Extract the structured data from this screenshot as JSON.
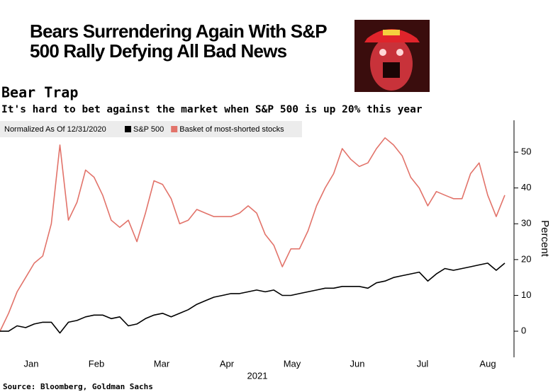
{
  "headline_lines": [
    "Bears Surrendering Again With S&P",
    "500 Rally Defying All Bad News"
  ],
  "chart_data": {
    "type": "line",
    "title": "Bear Trap",
    "subtitle": "It's hard to bet against the market when S&P 500 is up 20% this year",
    "legend_title": "Normalized As Of 12/31/2020",
    "x_labels": [
      "Jan",
      "Feb",
      "Mar",
      "Apr",
      "May",
      "Jun",
      "Jul",
      "Aug"
    ],
    "x_label": "2021",
    "y_label": "Percent",
    "source": "Source: Bloomberg, Goldman Sachs",
    "ylim": [
      -7.3,
      58.9
    ],
    "yticks": [
      0,
      10,
      20,
      30,
      40,
      50
    ],
    "grid": false,
    "legend": "top-left",
    "series": [
      {
        "name": "S&P 500",
        "color": "#000000",
        "values": [
          0,
          0,
          1.5,
          1,
          2,
          2.5,
          2.5,
          -0.5,
          2.5,
          3,
          4,
          4.5,
          4.5,
          3.5,
          4,
          1.5,
          2,
          3.5,
          4.5,
          5,
          4,
          5,
          6,
          7.5,
          8.5,
          9.5,
          10,
          10.5,
          10.5,
          11,
          11.5,
          11,
          11.5,
          10,
          10,
          10.5,
          11,
          11.5,
          12,
          12,
          12.5,
          12.5,
          12.5,
          12,
          13.5,
          14,
          15,
          15.5,
          16,
          16.5,
          14,
          16,
          17.5,
          17,
          17.5,
          18,
          18.5,
          19,
          17,
          19
        ]
      },
      {
        "name": "Basket of most-shorted stocks",
        "color": "#e2736a",
        "values": [
          0,
          5,
          11,
          15,
          19,
          21,
          30,
          52,
          31,
          36,
          45,
          43,
          38,
          31,
          29,
          31,
          25,
          33,
          42,
          41,
          37,
          30,
          31,
          34,
          33,
          32,
          32,
          32,
          33,
          35,
          33,
          27,
          24,
          18,
          23,
          23,
          28,
          35,
          40,
          44,
          51,
          48,
          46,
          47,
          51,
          54,
          52,
          49,
          43,
          40,
          35,
          39,
          38,
          37,
          37,
          44,
          47,
          38,
          32,
          38
        ]
      }
    ]
  }
}
